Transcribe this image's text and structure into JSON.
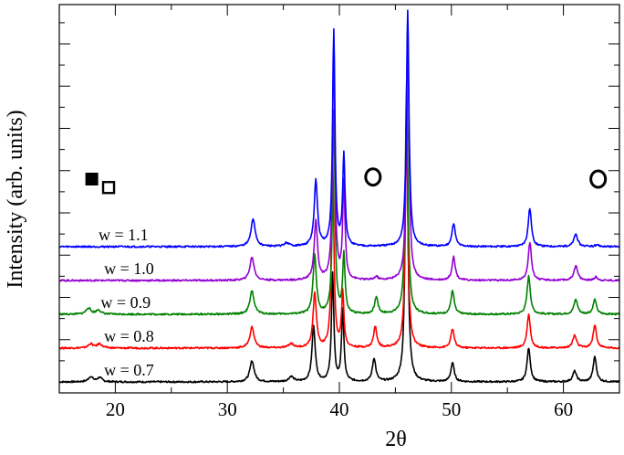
{
  "chart_data": {
    "type": "line",
    "title": "",
    "xlabel": "2θ",
    "ylabel": "Intensity (arb. units)",
    "xlim": [
      15,
      65
    ],
    "ylim": [
      0,
      9
    ],
    "x_ticks": [
      20,
      30,
      40,
      50,
      60
    ],
    "x_tick_labels": [
      "20",
      "30",
      "40",
      "50",
      "60"
    ],
    "y_tick_labels_shown": false,
    "grid": false,
    "legend": "none",
    "baseline_offsets": [
      0,
      0.8,
      1.6,
      2.4,
      3.2
    ],
    "series": [
      {
        "name": "w = 0.7",
        "color": "#000000",
        "offset": 0,
        "peaks": [
          {
            "pos": 17.8,
            "h": 0.12,
            "w": 0.5
          },
          {
            "pos": 18.6,
            "h": 0.1,
            "w": 0.5
          },
          {
            "pos": 32.2,
            "h": 0.5,
            "w": 0.45
          },
          {
            "pos": 35.7,
            "h": 0.12,
            "w": 0.5
          },
          {
            "pos": 37.7,
            "h": 1.3,
            "w": 0.35
          },
          {
            "pos": 39.4,
            "h": 2.55,
            "w": 0.25
          },
          {
            "pos": 40.3,
            "h": 1.7,
            "w": 0.25
          },
          {
            "pos": 43.1,
            "h": 0.55,
            "w": 0.35
          },
          {
            "pos": 46.0,
            "h": 6.7,
            "w": 0.28
          },
          {
            "pos": 50.1,
            "h": 0.45,
            "w": 0.35
          },
          {
            "pos": 56.9,
            "h": 0.8,
            "w": 0.35
          },
          {
            "pos": 61.0,
            "h": 0.25,
            "w": 0.4
          },
          {
            "pos": 62.8,
            "h": 0.6,
            "w": 0.35
          }
        ]
      },
      {
        "name": "w = 0.8",
        "color": "#ff0000",
        "offset": 0.8,
        "peaks": [
          {
            "pos": 17.8,
            "h": 0.1,
            "w": 0.5
          },
          {
            "pos": 18.6,
            "h": 0.1,
            "w": 0.5
          },
          {
            "pos": 32.2,
            "h": 0.5,
            "w": 0.45
          },
          {
            "pos": 35.7,
            "h": 0.1,
            "w": 0.5
          },
          {
            "pos": 37.8,
            "h": 1.3,
            "w": 0.35
          },
          {
            "pos": 39.4,
            "h": 4.55,
            "w": 0.25
          },
          {
            "pos": 40.3,
            "h": 1.3,
            "w": 0.25
          },
          {
            "pos": 43.2,
            "h": 0.5,
            "w": 0.35
          },
          {
            "pos": 46.0,
            "h": 5.3,
            "w": 0.28
          },
          {
            "pos": 50.1,
            "h": 0.45,
            "w": 0.35
          },
          {
            "pos": 56.9,
            "h": 0.8,
            "w": 0.35
          },
          {
            "pos": 61.0,
            "h": 0.3,
            "w": 0.4
          },
          {
            "pos": 62.8,
            "h": 0.55,
            "w": 0.35
          }
        ]
      },
      {
        "name": "w = 0.9",
        "color": "#008000",
        "offset": 1.6,
        "peaks": [
          {
            "pos": 17.6,
            "h": 0.15,
            "w": 0.5
          },
          {
            "pos": 18.5,
            "h": 0.1,
            "w": 0.5
          },
          {
            "pos": 32.2,
            "h": 0.55,
            "w": 0.45
          },
          {
            "pos": 37.8,
            "h": 1.4,
            "w": 0.35
          },
          {
            "pos": 39.5,
            "h": 4.8,
            "w": 0.25
          },
          {
            "pos": 40.4,
            "h": 1.4,
            "w": 0.25
          },
          {
            "pos": 43.3,
            "h": 0.4,
            "w": 0.35
          },
          {
            "pos": 46.0,
            "h": 5.5,
            "w": 0.28
          },
          {
            "pos": 50.1,
            "h": 0.55,
            "w": 0.35
          },
          {
            "pos": 56.9,
            "h": 0.9,
            "w": 0.35
          },
          {
            "pos": 61.1,
            "h": 0.35,
            "w": 0.4
          },
          {
            "pos": 62.8,
            "h": 0.35,
            "w": 0.35
          }
        ]
      },
      {
        "name": "w = 1.0",
        "color": "#9400d3",
        "offset": 2.4,
        "peaks": [
          {
            "pos": 32.2,
            "h": 0.55,
            "w": 0.45
          },
          {
            "pos": 37.9,
            "h": 1.4,
            "w": 0.35
          },
          {
            "pos": 39.5,
            "h": 5.5,
            "w": 0.25
          },
          {
            "pos": 40.4,
            "h": 2.3,
            "w": 0.25
          },
          {
            "pos": 43.3,
            "h": 0.08,
            "w": 0.35
          },
          {
            "pos": 46.1,
            "h": 5.9,
            "w": 0.28
          },
          {
            "pos": 50.2,
            "h": 0.55,
            "w": 0.35
          },
          {
            "pos": 57.0,
            "h": 0.9,
            "w": 0.35
          },
          {
            "pos": 61.1,
            "h": 0.35,
            "w": 0.4
          },
          {
            "pos": 62.9,
            "h": 0.08,
            "w": 0.35
          }
        ]
      },
      {
        "name": "w = 1.1",
        "color": "#0000ff",
        "offset": 3.2,
        "peaks": [
          {
            "pos": 32.3,
            "h": 0.65,
            "w": 0.45
          },
          {
            "pos": 35.3,
            "h": 0.08,
            "w": 0.5
          },
          {
            "pos": 37.9,
            "h": 1.55,
            "w": 0.35
          },
          {
            "pos": 39.5,
            "h": 5.1,
            "w": 0.25
          },
          {
            "pos": 40.4,
            "h": 2.15,
            "w": 0.25
          },
          {
            "pos": 46.1,
            "h": 5.6,
            "w": 0.28
          },
          {
            "pos": 50.2,
            "h": 0.55,
            "w": 0.35
          },
          {
            "pos": 57.0,
            "h": 0.9,
            "w": 0.35
          },
          {
            "pos": 61.1,
            "h": 0.3,
            "w": 0.4
          },
          {
            "pos": 63.0,
            "h": 0.05,
            "w": 0.35
          }
        ]
      }
    ],
    "annotations": [
      {
        "marker": "filled-square",
        "x": 17.9,
        "y": 4.8
      },
      {
        "marker": "open-square",
        "x": 19.4,
        "y": 4.6
      },
      {
        "marker": "open-circle",
        "x": 43.0,
        "y": 4.85
      },
      {
        "marker": "open-circle",
        "x": 63.1,
        "y": 4.8
      }
    ],
    "label_positions": [
      {
        "series": "w = 1.1",
        "x": 18.5,
        "y": 3.35
      },
      {
        "series": "w = 1.0",
        "x": 19.0,
        "y": 2.55
      },
      {
        "series": "w = 0.9",
        "x": 18.7,
        "y": 1.75
      },
      {
        "series": "w = 0.8",
        "x": 19.0,
        "y": 0.95
      },
      {
        "series": "w = 0.7",
        "x": 19.0,
        "y": 0.15
      }
    ]
  }
}
